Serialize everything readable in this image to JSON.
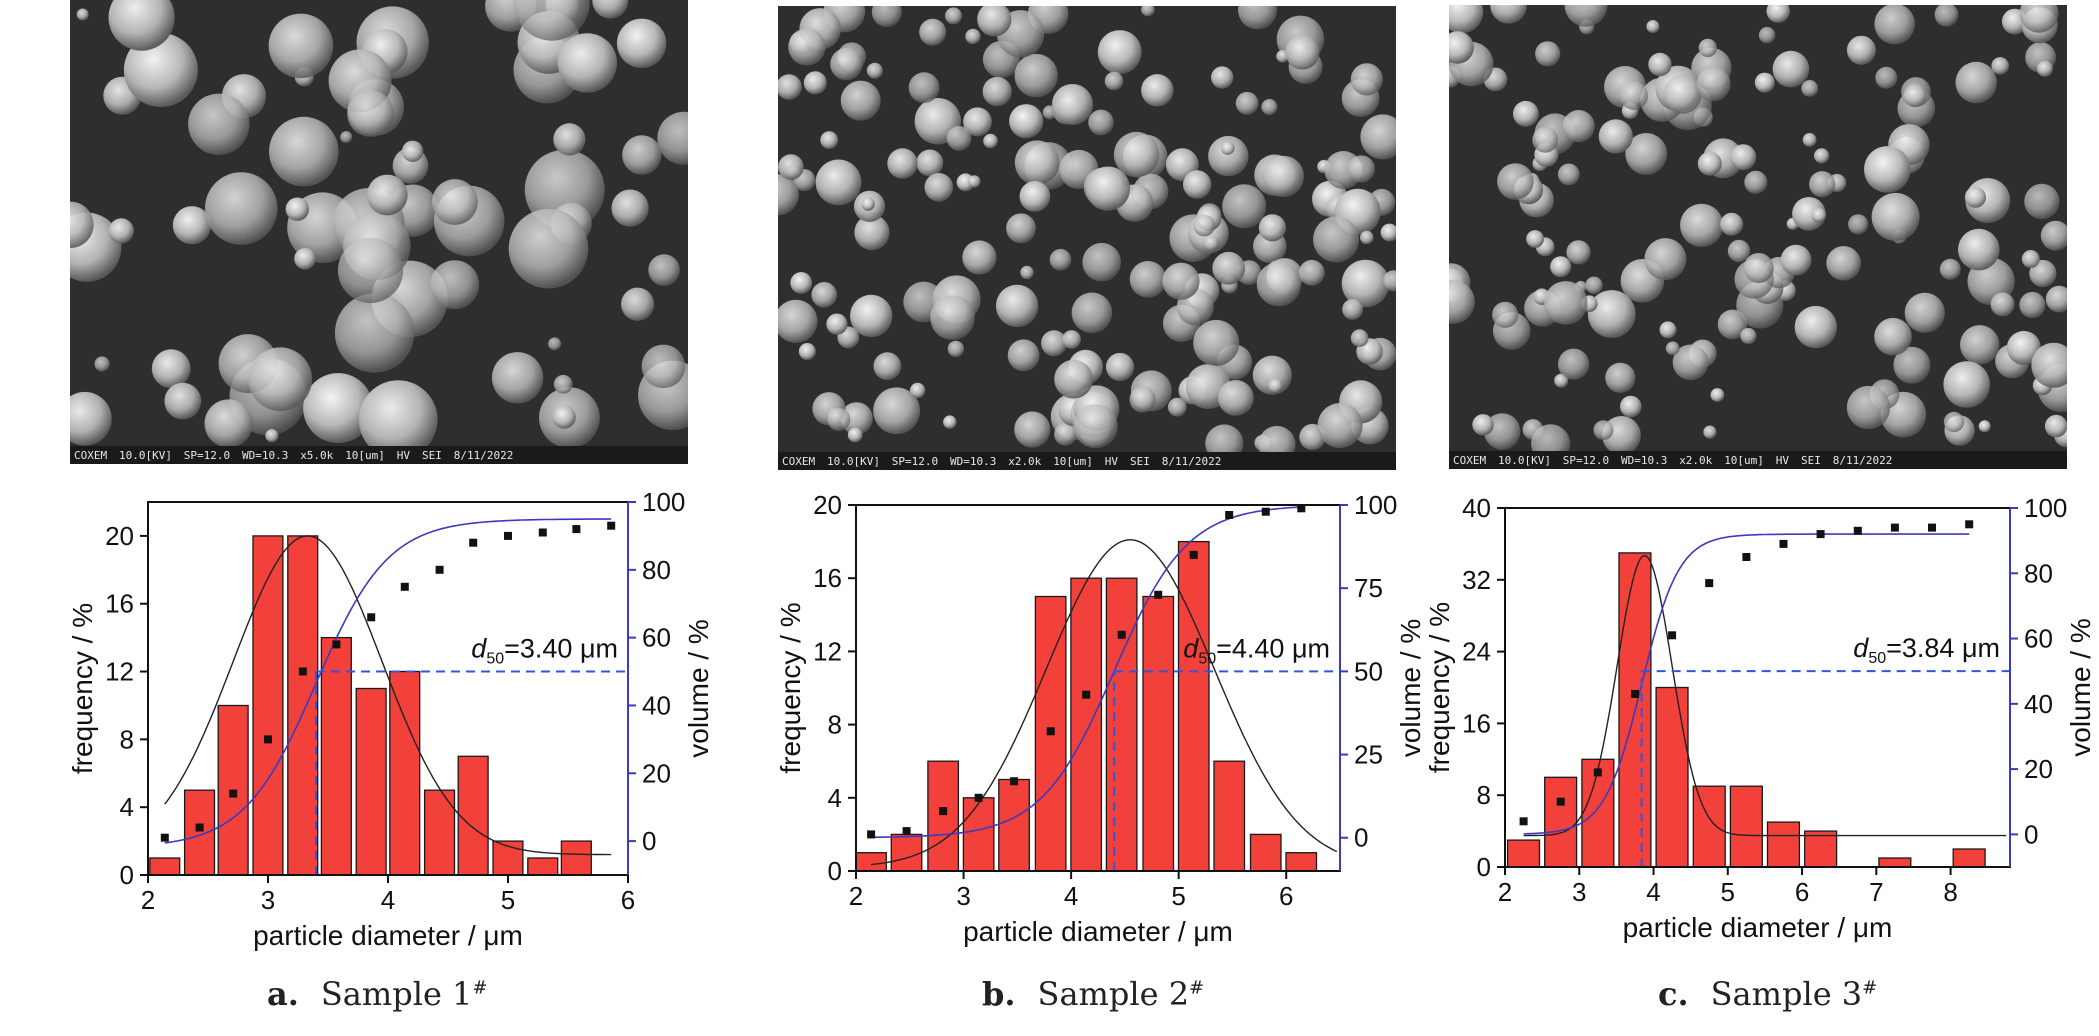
{
  "figure": {
    "panels": [
      {
        "caption_letter": "a.",
        "caption_text": "Sample 1",
        "caption_sup": "#",
        "sem_footer": [
          "COXEM",
          "10.0[KV]",
          "SP=12.0",
          "WD=10.3",
          "x5.0k",
          "10[um]",
          "HV",
          "SEI",
          "8/11/2022"
        ],
        "chart_data": {
          "type": "bar",
          "xlabel": "particle diameter / μm",
          "ylabel": "frequency / %",
          "y2label": "volume / %",
          "xlim": [
            2,
            6
          ],
          "ylim": [
            0,
            22
          ],
          "y2lim": [
            -10,
            100
          ],
          "xticks": [
            2,
            3,
            4,
            5,
            6
          ],
          "yticks": [
            0,
            4,
            8,
            12,
            16,
            20
          ],
          "y2ticks": [
            0,
            20,
            40,
            60,
            80,
            100
          ],
          "bar_x": [
            2.14,
            2.43,
            2.71,
            3.0,
            3.29,
            3.57,
            3.86,
            4.14,
            4.43,
            4.71,
            5.0,
            5.29,
            5.57
          ],
          "bar_values": [
            1,
            5,
            10,
            20,
            20,
            14,
            11,
            12,
            5,
            7,
            2,
            1,
            2
          ],
          "bar_color": "#f2403a",
          "fit_curve": {
            "mu": 3.33,
            "sigma": 0.62,
            "amplitude": 18.8,
            "baseline": 1.2
          },
          "cumulative_points": {
            "x": [
              2.14,
              2.43,
              2.71,
              3.0,
              3.29,
              3.57,
              3.86,
              4.14,
              4.43,
              4.71,
              5.0,
              5.29,
              5.57,
              5.86
            ],
            "y": [
              1,
              4,
              14,
              30,
              50,
              58,
              66,
              75,
              80,
              88,
              90,
              91,
              92,
              93
            ]
          },
          "cumulative_fit": {
            "x0": 3.4,
            "k": 1.75,
            "top": 95,
            "bottom": -2
          },
          "d50": {
            "value": 3.4,
            "label_d": "d",
            "label_sub": "50",
            "label_rest": "=3.40 μm"
          },
          "curve_color": "#3b3bbd",
          "dash_color": "#3355dd"
        }
      },
      {
        "caption_letter": "b.",
        "caption_text": "Sample 2",
        "caption_sup": "#",
        "sem_footer": [
          "COXEM",
          "10.0[KV]",
          "SP=12.0",
          "WD=10.3",
          "x2.0k",
          "10[um]",
          "HV",
          "SEI",
          "8/11/2022"
        ],
        "chart_data": {
          "type": "bar",
          "xlabel": "particle diameter / μm",
          "ylabel": "frequency / %",
          "y2label": "volume / %",
          "xlim": [
            2,
            6.5
          ],
          "ylim": [
            0,
            20
          ],
          "y2lim": [
            -10,
            100
          ],
          "xticks": [
            2,
            3,
            4,
            5,
            6
          ],
          "yticks": [
            0,
            4,
            8,
            12,
            16,
            20
          ],
          "y2ticks": [
            0,
            25,
            50,
            75,
            100
          ],
          "bar_x": [
            2.14,
            2.47,
            2.81,
            3.14,
            3.47,
            3.81,
            4.14,
            4.47,
            4.81,
            5.14,
            5.47,
            5.81,
            6.14
          ],
          "bar_values": [
            1,
            2,
            6,
            4,
            5,
            15,
            16,
            16,
            15,
            18,
            6,
            2,
            1
          ],
          "bar_color": "#f2403a",
          "fit_curve": {
            "mu": 4.55,
            "sigma": 0.78,
            "amplitude": 17.9,
            "baseline": 0.2
          },
          "cumulative_points": {
            "x": [
              2.14,
              2.47,
              2.81,
              3.14,
              3.47,
              3.81,
              4.14,
              4.47,
              4.81,
              5.14,
              5.47,
              5.81,
              6.14
            ],
            "y": [
              1,
              2,
              8,
              12,
              17,
              32,
              43,
              61,
              73,
              85,
              97,
              98,
              99
            ]
          },
          "cumulative_fit": {
            "x0": 4.4,
            "k": 1.55,
            "top": 100,
            "bottom": 0
          },
          "d50": {
            "value": 4.4,
            "label_d": "d",
            "label_sub": "50",
            "label_rest": "=4.40 μm"
          },
          "curve_color": "#3b3bbd",
          "dash_color": "#3355dd"
        }
      },
      {
        "caption_letter": "c.",
        "caption_text": "Sample 3",
        "caption_sup": "#",
        "sem_footer": [
          "COXEM",
          "10.0[KV]",
          "SP=12.0",
          "WD=10.3",
          "x2.0k",
          "10[um]",
          "HV",
          "SEI",
          "8/11/2022"
        ],
        "chart_data": {
          "type": "bar",
          "xlabel": "particle diameter / μm",
          "ylabel": "frequency / %",
          "y2label": "volume / %",
          "xlim": [
            2,
            8.8
          ],
          "ylim": [
            0,
            40
          ],
          "y2lim": [
            -10,
            100
          ],
          "xticks": [
            2,
            3,
            4,
            5,
            6,
            7,
            8
          ],
          "yticks": [
            0,
            8,
            16,
            24,
            32,
            40
          ],
          "y2ticks": [
            0,
            20,
            40,
            60,
            80,
            100
          ],
          "bar_x": [
            2.25,
            2.75,
            3.25,
            3.75,
            4.25,
            4.75,
            5.25,
            5.75,
            6.25,
            6.75,
            7.25,
            7.75,
            8.25
          ],
          "bar_values": [
            3,
            10,
            12,
            35,
            20,
            9,
            9,
            5,
            4,
            0,
            1,
            0,
            2
          ],
          "bar_color": "#f2403a",
          "fit_curve": {
            "mu": 3.88,
            "sigma": 0.37,
            "amplitude": 31.2,
            "baseline": 3.5
          },
          "cumulative_points": {
            "x": [
              2.25,
              2.75,
              3.25,
              3.75,
              4.25,
              4.75,
              5.25,
              5.75,
              6.25,
              6.75,
              7.25,
              7.75,
              8.25
            ],
            "y": [
              4,
              10,
              19,
              43,
              61,
              77,
              85,
              89,
              92,
              93,
              94,
              94,
              95
            ]
          },
          "cumulative_fit": {
            "x0": 3.84,
            "k": 2.1,
            "top": 92,
            "bottom": 0
          },
          "d50": {
            "value": 3.84,
            "label_d": "d",
            "label_sub": "50",
            "label_rest": "=3.84 μm"
          },
          "curve_color": "#3b3bbd",
          "dash_color": "#3355dd"
        }
      }
    ]
  }
}
